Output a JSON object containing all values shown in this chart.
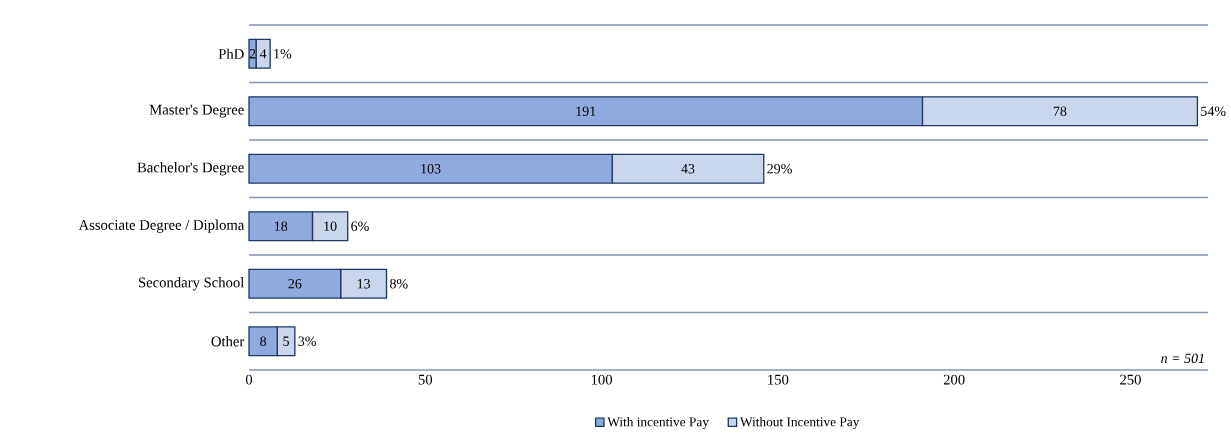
{
  "chart_data": {
    "type": "bar",
    "orientation": "horizontal",
    "stacked": true,
    "categories": [
      "PhD",
      "Master's Degree",
      "Bachelor's Degree",
      "Associate Degree / Diploma",
      "Secondary School",
      "Other"
    ],
    "series": [
      {
        "name": "With incentive Pay",
        "color": "#8faadc",
        "values": [
          2,
          191,
          103,
          18,
          26,
          8
        ]
      },
      {
        "name": "Without Incentive Pay",
        "color": "#c9d6ee",
        "values": [
          4,
          78,
          43,
          10,
          13,
          5
        ]
      }
    ],
    "data_labels": true,
    "xlim": [
      0,
      272
    ],
    "xticks": [
      0,
      50,
      100,
      150,
      200,
      250
    ],
    "grid": "y",
    "legend": "bottom",
    "annotations": [
      {
        "text": "1%",
        "x": 6,
        "y": "PhD"
      },
      {
        "text": "54%",
        "x": 269,
        "y": "Master's Degree"
      },
      {
        "text": "29%",
        "x": 146,
        "y": "Bachelor's Degree"
      },
      {
        "text": "6%",
        "x": 28,
        "y": "Associate Degree / Diploma"
      },
      {
        "text": "8%",
        "x": 39,
        "y": "Secondary School"
      },
      {
        "text": "3%",
        "x": 13,
        "y": "Other"
      },
      "n = 501"
    ]
  }
}
